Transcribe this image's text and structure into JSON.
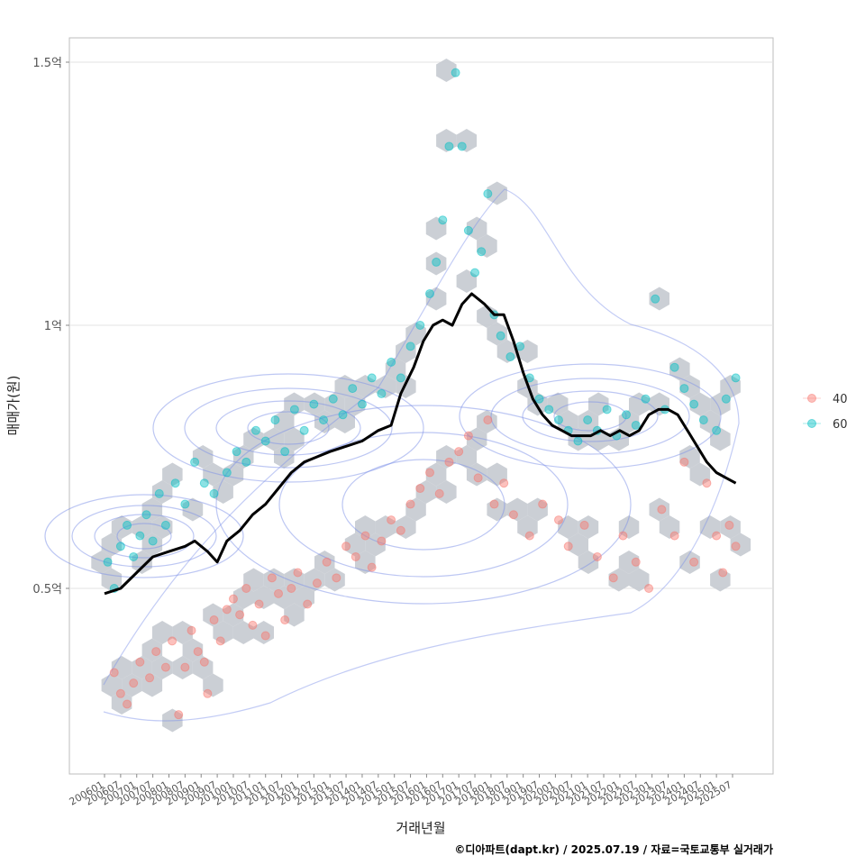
{
  "chart_data": {
    "type": "scatter",
    "title": "",
    "xlabel": "거래년월",
    "ylabel": "매매가(원)",
    "ylim": [
      0.2,
      1.52
    ],
    "y_unit": "억",
    "y_ticks": [
      {
        "value": 0.5,
        "label": "0.5억"
      },
      {
        "value": 1.0,
        "label": "1억"
      },
      {
        "value": 1.5,
        "label": "1.5억"
      }
    ],
    "x_range": [
      2005.8,
      2027.2
    ],
    "x_ticks": [
      "200601",
      "200607",
      "200701",
      "200707",
      "200801",
      "200807",
      "200901",
      "200907",
      "201001",
      "201007",
      "201101",
      "201107",
      "201201",
      "201207",
      "201301",
      "201307",
      "201401",
      "201407",
      "201501",
      "201507",
      "201601",
      "201607",
      "201701",
      "201707",
      "201801",
      "201807",
      "201901",
      "201907",
      "202001",
      "202007",
      "202101",
      "202107",
      "202201",
      "202207",
      "202301",
      "202307",
      "202401",
      "202407",
      "202501",
      "202507"
    ],
    "legend": {
      "position": "right",
      "entries": [
        {
          "label": "40",
          "color": "#F8766D"
        },
        {
          "label": "60",
          "color": "#00BFC4"
        }
      ]
    },
    "series": [
      {
        "name": "40",
        "color": "#F8766D",
        "points": [
          [
            2006.3,
            0.34
          ],
          [
            2006.5,
            0.3
          ],
          [
            2006.7,
            0.28
          ],
          [
            2006.9,
            0.32
          ],
          [
            2007.1,
            0.36
          ],
          [
            2007.4,
            0.33
          ],
          [
            2007.6,
            0.38
          ],
          [
            2007.9,
            0.35
          ],
          [
            2008.1,
            0.4
          ],
          [
            2008.3,
            0.26
          ],
          [
            2008.5,
            0.35
          ],
          [
            2008.7,
            0.42
          ],
          [
            2008.9,
            0.38
          ],
          [
            2009.1,
            0.36
          ],
          [
            2009.2,
            0.3
          ],
          [
            2009.4,
            0.44
          ],
          [
            2009.6,
            0.4
          ],
          [
            2009.8,
            0.46
          ],
          [
            2010.0,
            0.48
          ],
          [
            2010.2,
            0.45
          ],
          [
            2010.4,
            0.5
          ],
          [
            2010.6,
            0.43
          ],
          [
            2010.8,
            0.47
          ],
          [
            2011.0,
            0.41
          ],
          [
            2011.2,
            0.52
          ],
          [
            2011.4,
            0.49
          ],
          [
            2011.6,
            0.44
          ],
          [
            2011.8,
            0.5
          ],
          [
            2012.0,
            0.53
          ],
          [
            2012.3,
            0.47
          ],
          [
            2012.6,
            0.51
          ],
          [
            2012.9,
            0.55
          ],
          [
            2013.2,
            0.52
          ],
          [
            2013.5,
            0.58
          ],
          [
            2013.8,
            0.56
          ],
          [
            2014.1,
            0.6
          ],
          [
            2014.3,
            0.54
          ],
          [
            2014.6,
            0.59
          ],
          [
            2014.9,
            0.63
          ],
          [
            2015.2,
            0.61
          ],
          [
            2015.5,
            0.66
          ],
          [
            2015.8,
            0.69
          ],
          [
            2016.1,
            0.72
          ],
          [
            2016.4,
            0.68
          ],
          [
            2016.7,
            0.74
          ],
          [
            2017.0,
            0.76
          ],
          [
            2017.3,
            0.79
          ],
          [
            2017.6,
            0.71
          ],
          [
            2017.9,
            0.82
          ],
          [
            2018.1,
            0.66
          ],
          [
            2018.4,
            0.7
          ],
          [
            2018.7,
            0.64
          ],
          [
            2019.2,
            0.6
          ],
          [
            2019.6,
            0.66
          ],
          [
            2020.1,
            0.63
          ],
          [
            2020.4,
            0.58
          ],
          [
            2020.9,
            0.62
          ],
          [
            2021.3,
            0.56
          ],
          [
            2021.8,
            0.52
          ],
          [
            2022.1,
            0.6
          ],
          [
            2022.5,
            0.55
          ],
          [
            2022.9,
            0.5
          ],
          [
            2023.3,
            0.65
          ],
          [
            2023.7,
            0.6
          ],
          [
            2024.0,
            0.74
          ],
          [
            2024.3,
            0.55
          ],
          [
            2024.7,
            0.7
          ],
          [
            2025.0,
            0.6
          ],
          [
            2025.2,
            0.53
          ],
          [
            2025.4,
            0.62
          ],
          [
            2025.6,
            0.58
          ]
        ]
      },
      {
        "name": "60",
        "color": "#00BFC4",
        "points": [
          [
            2006.1,
            0.55
          ],
          [
            2006.3,
            0.5
          ],
          [
            2006.5,
            0.58
          ],
          [
            2006.7,
            0.62
          ],
          [
            2006.9,
            0.56
          ],
          [
            2007.1,
            0.6
          ],
          [
            2007.3,
            0.64
          ],
          [
            2007.5,
            0.59
          ],
          [
            2007.7,
            0.68
          ],
          [
            2007.9,
            0.62
          ],
          [
            2008.2,
            0.7
          ],
          [
            2008.5,
            0.66
          ],
          [
            2008.8,
            0.74
          ],
          [
            2009.1,
            0.7
          ],
          [
            2009.4,
            0.68
          ],
          [
            2009.8,
            0.72
          ],
          [
            2010.1,
            0.76
          ],
          [
            2010.4,
            0.74
          ],
          [
            2010.7,
            0.8
          ],
          [
            2011.0,
            0.78
          ],
          [
            2011.3,
            0.82
          ],
          [
            2011.6,
            0.76
          ],
          [
            2011.9,
            0.84
          ],
          [
            2012.2,
            0.8
          ],
          [
            2012.5,
            0.85
          ],
          [
            2012.8,
            0.82
          ],
          [
            2013.1,
            0.86
          ],
          [
            2013.4,
            0.83
          ],
          [
            2013.7,
            0.88
          ],
          [
            2014.0,
            0.85
          ],
          [
            2014.3,
            0.9
          ],
          [
            2014.6,
            0.87
          ],
          [
            2014.9,
            0.93
          ],
          [
            2015.2,
            0.9
          ],
          [
            2015.5,
            0.96
          ],
          [
            2015.8,
            1.0
          ],
          [
            2016.1,
            1.06
          ],
          [
            2016.3,
            1.12
          ],
          [
            2016.5,
            1.2
          ],
          [
            2016.7,
            1.34
          ],
          [
            2016.9,
            1.48
          ],
          [
            2017.1,
            1.34
          ],
          [
            2017.3,
            1.18
          ],
          [
            2017.5,
            1.1
          ],
          [
            2017.7,
            1.14
          ],
          [
            2017.9,
            1.25
          ],
          [
            2018.1,
            1.02
          ],
          [
            2018.3,
            0.98
          ],
          [
            2018.6,
            0.94
          ],
          [
            2018.9,
            0.96
          ],
          [
            2019.2,
            0.9
          ],
          [
            2019.5,
            0.86
          ],
          [
            2019.8,
            0.84
          ],
          [
            2020.1,
            0.82
          ],
          [
            2020.4,
            0.8
          ],
          [
            2020.7,
            0.78
          ],
          [
            2021.0,
            0.82
          ],
          [
            2021.3,
            0.8
          ],
          [
            2021.6,
            0.84
          ],
          [
            2021.9,
            0.79
          ],
          [
            2022.2,
            0.83
          ],
          [
            2022.5,
            0.81
          ],
          [
            2022.8,
            0.86
          ],
          [
            2023.1,
            1.05
          ],
          [
            2023.4,
            0.84
          ],
          [
            2023.7,
            0.92
          ],
          [
            2024.0,
            0.88
          ],
          [
            2024.3,
            0.85
          ],
          [
            2024.6,
            0.82
          ],
          [
            2025.0,
            0.8
          ],
          [
            2025.3,
            0.86
          ],
          [
            2025.6,
            0.9
          ]
        ]
      },
      {
        "name": "moving average",
        "color": "#000000",
        "line": [
          [
            2006.0,
            0.49
          ],
          [
            2006.5,
            0.5
          ],
          [
            2007.0,
            0.53
          ],
          [
            2007.5,
            0.56
          ],
          [
            2008.0,
            0.57
          ],
          [
            2008.5,
            0.58
          ],
          [
            2008.8,
            0.59
          ],
          [
            2009.2,
            0.57
          ],
          [
            2009.5,
            0.55
          ],
          [
            2009.8,
            0.59
          ],
          [
            2010.2,
            0.61
          ],
          [
            2010.6,
            0.64
          ],
          [
            2011.0,
            0.66
          ],
          [
            2011.4,
            0.69
          ],
          [
            2011.8,
            0.72
          ],
          [
            2012.2,
            0.74
          ],
          [
            2012.6,
            0.75
          ],
          [
            2013.0,
            0.76
          ],
          [
            2013.5,
            0.77
          ],
          [
            2014.0,
            0.78
          ],
          [
            2014.5,
            0.8
          ],
          [
            2014.9,
            0.81
          ],
          [
            2015.2,
            0.87
          ],
          [
            2015.6,
            0.92
          ],
          [
            2015.9,
            0.97
          ],
          [
            2016.2,
            1.0
          ],
          [
            2016.5,
            1.01
          ],
          [
            2016.8,
            1.0
          ],
          [
            2017.1,
            1.04
          ],
          [
            2017.4,
            1.06
          ],
          [
            2017.8,
            1.04
          ],
          [
            2018.1,
            1.02
          ],
          [
            2018.4,
            1.02
          ],
          [
            2018.7,
            0.97
          ],
          [
            2019.0,
            0.91
          ],
          [
            2019.3,
            0.86
          ],
          [
            2019.6,
            0.83
          ],
          [
            2019.9,
            0.81
          ],
          [
            2020.2,
            0.8
          ],
          [
            2020.5,
            0.79
          ],
          [
            2020.8,
            0.79
          ],
          [
            2021.1,
            0.79
          ],
          [
            2021.4,
            0.8
          ],
          [
            2021.7,
            0.79
          ],
          [
            2022.0,
            0.8
          ],
          [
            2022.3,
            0.79
          ],
          [
            2022.6,
            0.8
          ],
          [
            2022.9,
            0.83
          ],
          [
            2023.2,
            0.84
          ],
          [
            2023.5,
            0.84
          ],
          [
            2023.8,
            0.83
          ],
          [
            2024.1,
            0.8
          ],
          [
            2024.4,
            0.77
          ],
          [
            2024.7,
            0.74
          ],
          [
            2025.0,
            0.72
          ],
          [
            2025.3,
            0.71
          ],
          [
            2025.6,
            0.7
          ]
        ]
      }
    ],
    "caption": "©디아파트(dapt.kr) / 2025.07.19 / 자료=국토교통부 실거래가"
  }
}
